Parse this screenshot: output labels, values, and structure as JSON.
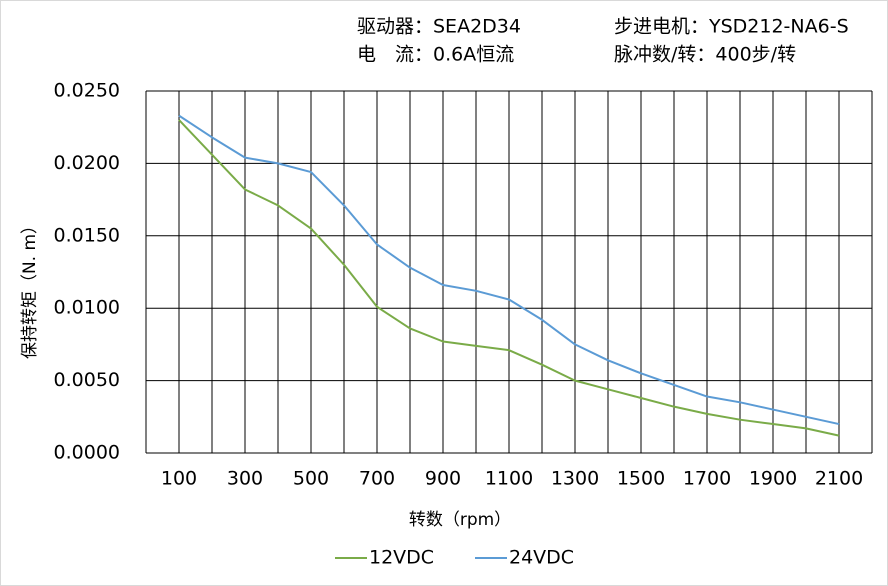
{
  "chart_data": {
    "type": "line",
    "annotations": [
      "驱动器：SEA2D34",
      "步进电机：YSD212-NA6-S",
      "电　流：0.6A恒流",
      "脉冲数/转：400步/转"
    ],
    "y_label": "保持转矩（N. m）",
    "x_label": "转数（rpm）",
    "x": [
      100,
      200,
      300,
      400,
      500,
      600,
      700,
      800,
      900,
      1000,
      1100,
      1200,
      1300,
      1400,
      1500,
      1600,
      1700,
      1800,
      1900,
      2000,
      2100
    ],
    "series": [
      {
        "name": "12VDC",
        "color": "#7aab48",
        "values": [
          0.023,
          0.0206,
          0.0182,
          0.0171,
          0.0155,
          0.013,
          0.0101,
          0.0086,
          0.0077,
          0.0074,
          0.0071,
          0.0061,
          0.005,
          0.0044,
          0.0038,
          0.0032,
          0.0027,
          0.0023,
          0.002,
          0.0017,
          0.0012
        ]
      },
      {
        "name": "24VDC",
        "color": "#5b9bd5",
        "values": [
          0.0233,
          0.0218,
          0.0204,
          0.02,
          0.0194,
          0.0171,
          0.0144,
          0.0128,
          0.0116,
          0.0112,
          0.0106,
          0.0092,
          0.0075,
          0.0064,
          0.0055,
          0.0047,
          0.0039,
          0.0035,
          0.003,
          0.0025,
          0.002
        ]
      }
    ],
    "xlim": [
      0,
      2200
    ],
    "xticks": [
      100,
      300,
      500,
      700,
      900,
      1100,
      1300,
      1500,
      1700,
      1900,
      2100
    ],
    "minor_xticks": [
      200,
      400,
      600,
      800,
      1000,
      1200,
      1400,
      1600,
      1800,
      2000
    ],
    "ylim": [
      0,
      0.025
    ],
    "yticks": [
      {
        "value": 0,
        "label": "0.0000"
      },
      {
        "value": 0.005,
        "label": "0.0050"
      },
      {
        "value": 0.01,
        "label": "0.0100"
      },
      {
        "value": 0.015,
        "label": "0.0150"
      },
      {
        "value": 0.02,
        "label": "0.0200"
      },
      {
        "value": 0.025,
        "label": "0.0250"
      }
    ],
    "grid": true
  }
}
